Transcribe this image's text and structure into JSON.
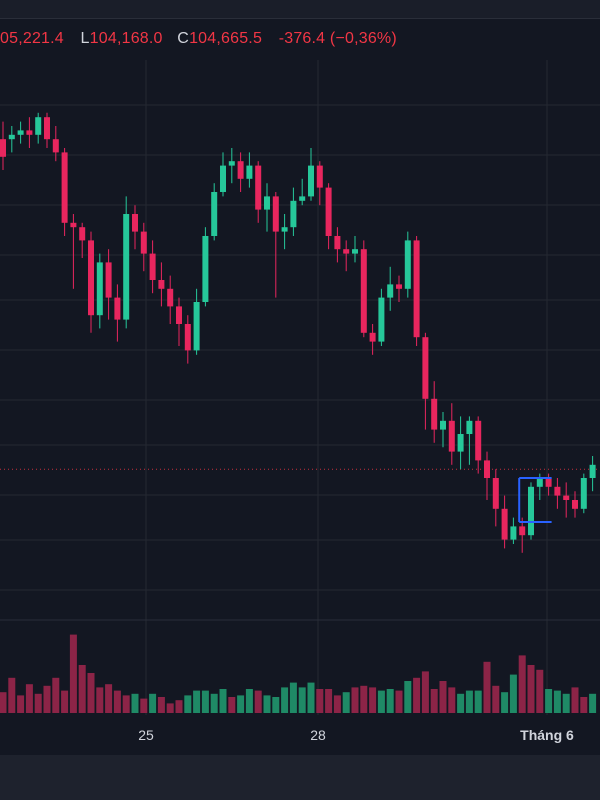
{
  "legend": {
    "open_label": "",
    "open_value": "05,221.4",
    "low_label": "L",
    "low_value": "104,168.0",
    "close_label": "C",
    "close_value": "104,665.5",
    "change": "-376.4 (−0,36%)"
  },
  "colors": {
    "background": "#131722",
    "grid": "#242832",
    "up": "#26c89a",
    "down": "#e8265e",
    "vol_up": "#1f8a66",
    "vol_down": "#8c2447",
    "last_price_line": "#f23645",
    "marker": "#2962ff"
  },
  "chart_data": {
    "type": "candlestick",
    "x_labels": [
      "25",
      "28",
      "Tháng 6"
    ],
    "grid": true,
    "candles": [
      [
        104.2,
        103.8,
        104.6,
        103.5,
        "d"
      ],
      [
        104.2,
        104.3,
        104.5,
        103.9,
        "u"
      ],
      [
        104.3,
        104.4,
        104.6,
        104.1,
        "u"
      ],
      [
        104.4,
        104.3,
        104.7,
        104.0,
        "d"
      ],
      [
        104.3,
        104.7,
        104.8,
        104.1,
        "u"
      ],
      [
        104.7,
        104.2,
        104.8,
        104.0,
        "d"
      ],
      [
        104.2,
        103.9,
        104.5,
        103.7,
        "d"
      ],
      [
        103.9,
        102.3,
        104.0,
        102.0,
        "d"
      ],
      [
        102.3,
        102.2,
        102.5,
        100.8,
        "d"
      ],
      [
        102.2,
        101.9,
        102.3,
        101.5,
        "d"
      ],
      [
        101.9,
        100.2,
        102.1,
        99.8,
        "d"
      ],
      [
        100.2,
        101.4,
        101.6,
        99.9,
        "u"
      ],
      [
        101.4,
        100.6,
        101.7,
        100.1,
        "d"
      ],
      [
        100.6,
        100.1,
        100.9,
        99.6,
        "d"
      ],
      [
        100.1,
        102.5,
        102.9,
        99.9,
        "u"
      ],
      [
        102.5,
        102.1,
        102.7,
        101.7,
        "d"
      ],
      [
        102.1,
        101.6,
        102.3,
        101.2,
        "d"
      ],
      [
        101.6,
        101.0,
        101.9,
        100.7,
        "d"
      ],
      [
        101.0,
        100.8,
        101.4,
        100.4,
        "d"
      ],
      [
        100.8,
        100.4,
        101.1,
        100.0,
        "d"
      ],
      [
        100.4,
        100.0,
        100.6,
        99.5,
        "d"
      ],
      [
        100.0,
        99.4,
        100.2,
        99.1,
        "d"
      ],
      [
        99.4,
        100.5,
        100.8,
        99.3,
        "u"
      ],
      [
        100.5,
        102.0,
        102.2,
        100.4,
        "u"
      ],
      [
        102.0,
        103.0,
        103.2,
        101.9,
        "u"
      ],
      [
        103.0,
        103.6,
        103.9,
        102.9,
        "u"
      ],
      [
        103.6,
        103.7,
        104.0,
        103.2,
        "u"
      ],
      [
        103.7,
        103.3,
        103.9,
        103.0,
        "d"
      ],
      [
        103.3,
        103.6,
        103.9,
        103.1,
        "u"
      ],
      [
        103.6,
        102.6,
        103.7,
        102.3,
        "d"
      ],
      [
        102.6,
        102.9,
        103.2,
        102.1,
        "u"
      ],
      [
        102.9,
        102.1,
        103.0,
        100.6,
        "d"
      ],
      [
        102.1,
        102.2,
        102.5,
        101.7,
        "u"
      ],
      [
        102.2,
        102.8,
        103.1,
        102.0,
        "u"
      ],
      [
        102.8,
        102.9,
        103.3,
        102.7,
        "u"
      ],
      [
        102.9,
        103.6,
        104.0,
        102.8,
        "u"
      ],
      [
        103.6,
        103.1,
        103.7,
        102.7,
        "d"
      ],
      [
        103.1,
        102.0,
        103.2,
        101.7,
        "d"
      ],
      [
        102.0,
        101.7,
        102.2,
        101.4,
        "d"
      ],
      [
        101.7,
        101.6,
        101.9,
        101.2,
        "d"
      ],
      [
        101.6,
        101.7,
        102.0,
        101.4,
        "u"
      ],
      [
        101.7,
        99.8,
        101.9,
        99.7,
        "d"
      ],
      [
        99.8,
        99.6,
        100.0,
        99.3,
        "d"
      ],
      [
        99.6,
        100.6,
        100.8,
        99.5,
        "u"
      ],
      [
        100.6,
        100.9,
        101.3,
        100.3,
        "u"
      ],
      [
        100.9,
        100.8,
        101.1,
        100.5,
        "d"
      ],
      [
        100.8,
        101.9,
        102.1,
        100.6,
        "u"
      ],
      [
        101.9,
        99.7,
        102.0,
        99.5,
        "d"
      ],
      [
        99.7,
        98.3,
        99.8,
        97.6,
        "d"
      ],
      [
        98.3,
        97.6,
        98.7,
        97.3,
        "d"
      ],
      [
        97.6,
        97.8,
        98.0,
        97.2,
        "u"
      ],
      [
        97.8,
        97.1,
        98.2,
        96.8,
        "d"
      ],
      [
        97.1,
        97.5,
        97.9,
        96.7,
        "u"
      ],
      [
        97.5,
        97.8,
        97.9,
        96.8,
        "u"
      ],
      [
        97.8,
        96.9,
        97.9,
        96.6,
        "d"
      ],
      [
        96.9,
        96.5,
        97.1,
        96.0,
        "d"
      ],
      [
        96.5,
        95.8,
        96.7,
        95.4,
        "d"
      ],
      [
        95.8,
        95.1,
        96.1,
        94.9,
        "d"
      ],
      [
        95.1,
        95.4,
        95.6,
        95.0,
        "u"
      ],
      [
        95.4,
        95.2,
        95.6,
        94.8,
        "d"
      ],
      [
        95.2,
        96.3,
        96.4,
        95.1,
        "u"
      ],
      [
        96.3,
        96.5,
        96.6,
        96.0,
        "u"
      ],
      [
        96.5,
        96.3,
        96.6,
        96.1,
        "d"
      ],
      [
        96.3,
        96.1,
        96.5,
        95.8,
        "d"
      ],
      [
        96.1,
        96.0,
        96.4,
        95.6,
        "d"
      ],
      [
        96.0,
        95.8,
        96.2,
        95.6,
        "d"
      ],
      [
        95.8,
        96.5,
        96.6,
        95.7,
        "u"
      ],
      [
        96.5,
        96.8,
        97.0,
        96.2,
        "u"
      ]
    ],
    "volume": [
      [
        13,
        "d"
      ],
      [
        22,
        "d"
      ],
      [
        11,
        "d"
      ],
      [
        18,
        "d"
      ],
      [
        12,
        "d"
      ],
      [
        17,
        "d"
      ],
      [
        22,
        "d"
      ],
      [
        14,
        "d"
      ],
      [
        49,
        "d"
      ],
      [
        30,
        "d"
      ],
      [
        25,
        "d"
      ],
      [
        16,
        "d"
      ],
      [
        18,
        "d"
      ],
      [
        14,
        "d"
      ],
      [
        11,
        "d"
      ],
      [
        12,
        "u"
      ],
      [
        9,
        "d"
      ],
      [
        12,
        "u"
      ],
      [
        10,
        "d"
      ],
      [
        6,
        "d"
      ],
      [
        8,
        "d"
      ],
      [
        11,
        "u"
      ],
      [
        14,
        "u"
      ],
      [
        14,
        "u"
      ],
      [
        12,
        "u"
      ],
      [
        15,
        "u"
      ],
      [
        10,
        "d"
      ],
      [
        11,
        "u"
      ],
      [
        15,
        "u"
      ],
      [
        14,
        "d"
      ],
      [
        11,
        "u"
      ],
      [
        10,
        "u"
      ],
      [
        16,
        "u"
      ],
      [
        19,
        "u"
      ],
      [
        16,
        "u"
      ],
      [
        19,
        "u"
      ],
      [
        15,
        "d"
      ],
      [
        15,
        "d"
      ],
      [
        11,
        "d"
      ],
      [
        13,
        "u"
      ],
      [
        16,
        "d"
      ],
      [
        17,
        "d"
      ],
      [
        16,
        "d"
      ],
      [
        14,
        "u"
      ],
      [
        15,
        "u"
      ],
      [
        14,
        "d"
      ],
      [
        20,
        "u"
      ],
      [
        22,
        "d"
      ],
      [
        26,
        "d"
      ],
      [
        15,
        "d"
      ],
      [
        20,
        "d"
      ],
      [
        16,
        "d"
      ],
      [
        12,
        "u"
      ],
      [
        14,
        "u"
      ],
      [
        14,
        "u"
      ],
      [
        32,
        "d"
      ],
      [
        17,
        "d"
      ],
      [
        13,
        "u"
      ],
      [
        24,
        "u"
      ],
      [
        36,
        "d"
      ],
      [
        30,
        "d"
      ],
      [
        27,
        "d"
      ],
      [
        15,
        "u"
      ],
      [
        14,
        "u"
      ],
      [
        12,
        "u"
      ],
      [
        16,
        "d"
      ],
      [
        10,
        "d"
      ],
      [
        12,
        "u"
      ]
    ],
    "last_price": 96.7
  }
}
